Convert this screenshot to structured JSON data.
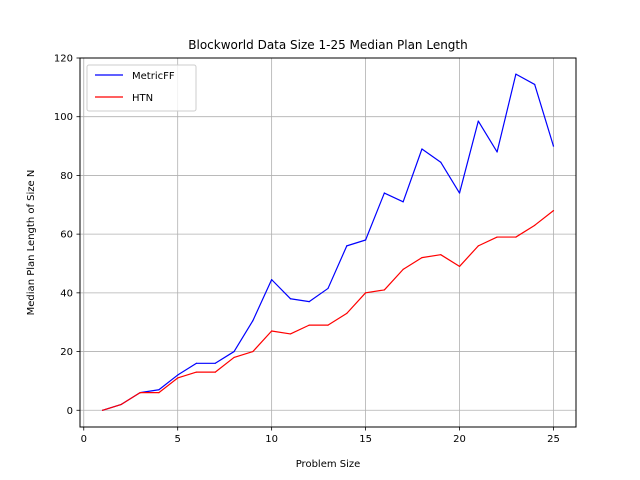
{
  "chart_data": {
    "type": "line",
    "title": "Blockworld Data Size 1-25 Median Plan Length",
    "xlabel": "Problem Size",
    "ylabel": "Median Plan Length of Size N",
    "xlim": [
      -0.2,
      26.2
    ],
    "ylim": [
      -5.7,
      120
    ],
    "xticks": [
      0,
      5,
      10,
      15,
      20,
      25
    ],
    "yticks": [
      0,
      20,
      40,
      60,
      80,
      100,
      120
    ],
    "grid": true,
    "legend_position": "top-left",
    "x": [
      1,
      2,
      3,
      4,
      5,
      6,
      7,
      8,
      9,
      10,
      11,
      12,
      13,
      14,
      15,
      16,
      17,
      18,
      19,
      20,
      21,
      22,
      23,
      24,
      25
    ],
    "series": [
      {
        "name": "MetricFF",
        "color": "#0000ff",
        "values": [
          0,
          2,
          6,
          7,
          12,
          16,
          16,
          20,
          30.5,
          44.5,
          38,
          37,
          41.5,
          56,
          58,
          74,
          71,
          89,
          84.5,
          74,
          98.5,
          88,
          114.5,
          111,
          90
        ]
      },
      {
        "name": "HTN",
        "color": "#ff0000",
        "values": [
          0,
          2,
          6,
          6,
          11,
          13,
          13,
          18,
          20,
          27,
          26,
          29,
          29,
          33,
          40,
          41,
          48,
          52,
          53,
          49,
          56,
          59,
          59,
          63,
          68
        ]
      }
    ]
  }
}
